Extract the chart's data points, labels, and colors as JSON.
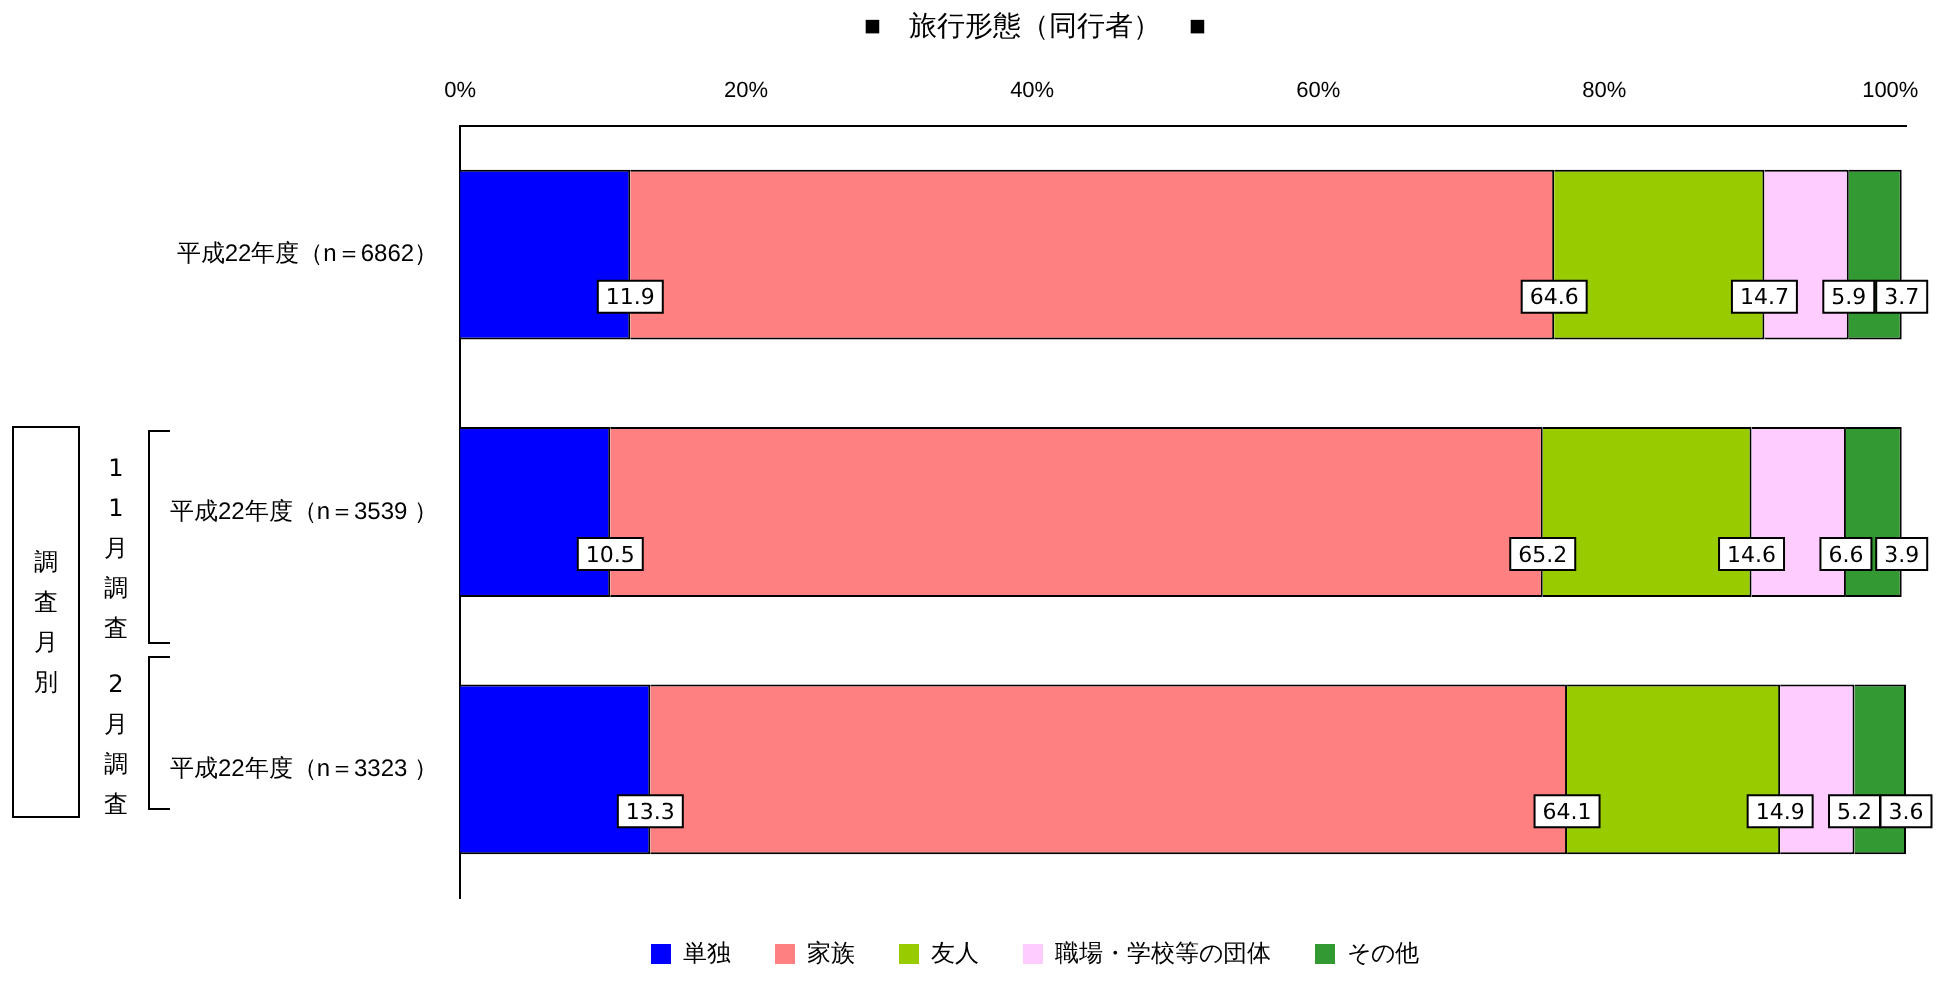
{
  "chart_data": {
    "type": "bar",
    "orientation": "horizontal",
    "stacked": true,
    "title": "■　旅行形態（同行者）　■",
    "categories": [
      "平成22年度（n＝6862）",
      "平成22年度（n＝3539 ）",
      "平成22年度（n＝3323 ）"
    ],
    "series": [
      {
        "name": "単独",
        "color": "#0000ff",
        "values": [
          11.9,
          10.5,
          13.3
        ]
      },
      {
        "name": "家族",
        "color": "#ff8080",
        "values": [
          64.6,
          65.2,
          64.1
        ]
      },
      {
        "name": "友人",
        "color": "#99cc00",
        "values": [
          14.7,
          14.6,
          14.9
        ]
      },
      {
        "name": "職場・学校等の団体",
        "color": "#ffccff",
        "values": [
          5.9,
          6.6,
          5.2
        ]
      },
      {
        "name": "その他",
        "color": "#339933",
        "values": [
          3.7,
          3.9,
          3.6
        ]
      }
    ],
    "xlim": [
      0,
      101.1
    ],
    "xticks": [
      {
        "value": 0,
        "label": "0%"
      },
      {
        "value": 20,
        "label": "20%"
      },
      {
        "value": 40,
        "label": "40%"
      },
      {
        "value": 60,
        "label": "60%"
      },
      {
        "value": 80,
        "label": "80%"
      },
      {
        "value": 100,
        "label": "100%"
      }
    ],
    "grid": false,
    "legend": "bottom",
    "data_labels": true,
    "annotations": [
      "調査月別",
      "11月調査",
      "2月調査"
    ]
  }
}
